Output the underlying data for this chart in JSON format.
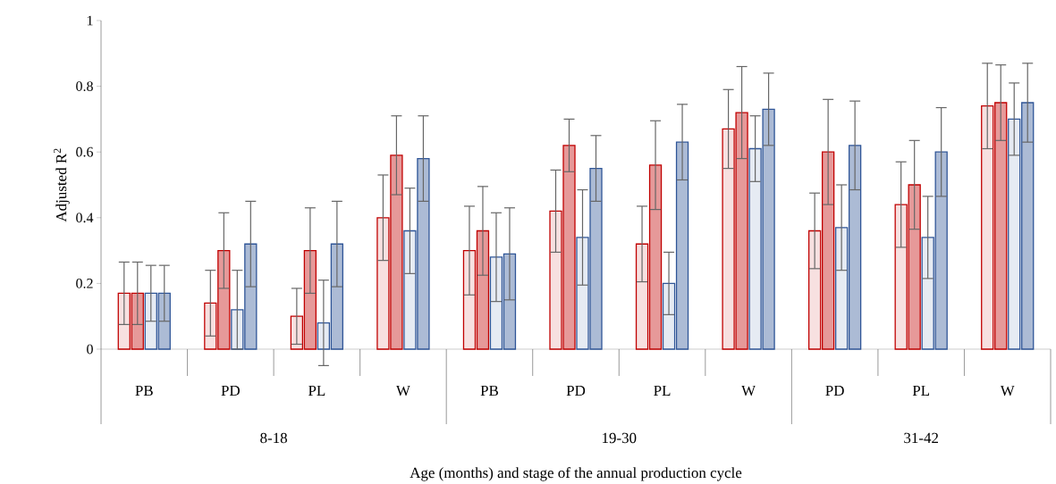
{
  "chart_data": {
    "type": "bar",
    "xlabel": "Age (months) and stage of the annual production cycle",
    "ylabel": "Adjusted R$^{2}$",
    "categories": [
      "PB",
      "PD",
      "PL",
      "W",
      "PB",
      "PD",
      "PL",
      "W",
      "PD",
      "PL",
      "W"
    ],
    "annotations": [
      "8-18",
      "19-30",
      "31-42"
    ],
    "ylim": [
      0,
      1
    ],
    "yticks": [
      0,
      0.2,
      0.4,
      0.6,
      0.8,
      1
    ],
    "series": [
      {
        "color": "#c00000",
        "values": [
          0.17,
          0.14,
          0.1,
          0.4,
          0.3,
          0.42,
          0.32,
          0.67,
          0.36,
          0.44,
          0.74
        ],
        "errors": [
          0.095,
          0.1,
          0.085,
          0.13,
          0.135,
          0.125,
          0.115,
          0.12,
          0.115,
          0.13,
          0.13
        ]
      },
      {
        "color": "#c00000",
        "values": [
          0.17,
          0.3,
          0.3,
          0.59,
          0.36,
          0.62,
          0.56,
          0.72,
          0.6,
          0.5,
          0.75
        ],
        "errors": [
          0.095,
          0.115,
          0.13,
          0.12,
          0.135,
          0.08,
          0.135,
          0.14,
          0.16,
          0.135,
          0.115
        ]
      },
      {
        "color": "#2f5597",
        "values": [
          0.17,
          0.12,
          0.08,
          0.36,
          0.28,
          0.34,
          0.2,
          0.61,
          0.37,
          0.34,
          0.7
        ],
        "errors": [
          0.085,
          0.12,
          0.13,
          0.13,
          0.135,
          0.145,
          0.095,
          0.1,
          0.13,
          0.125,
          0.11
        ]
      },
      {
        "color": "#2f5597",
        "values": [
          0.17,
          0.32,
          0.32,
          0.58,
          0.29,
          0.55,
          0.63,
          0.73,
          0.62,
          0.6,
          0.75
        ],
        "errors": [
          0.085,
          0.13,
          0.13,
          0.13,
          0.14,
          0.1,
          0.115,
          0.11,
          0.135,
          0.135,
          0.12
        ]
      }
    ]
  }
}
